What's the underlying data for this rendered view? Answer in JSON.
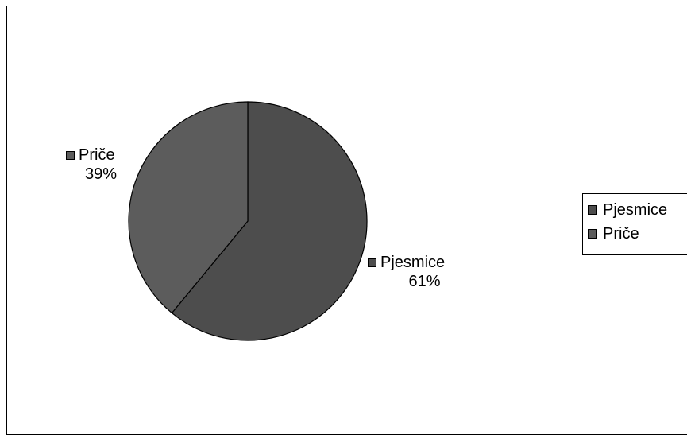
{
  "chart_data": {
    "type": "pie",
    "title": "",
    "slices": [
      {
        "name": "Pjesmice",
        "value": 61,
        "label": "61%",
        "color": "#4d4d4d"
      },
      {
        "name": "Priče",
        "value": 39,
        "label": "39%",
        "color": "#5c5c5c"
      }
    ],
    "legend_position": "right"
  }
}
